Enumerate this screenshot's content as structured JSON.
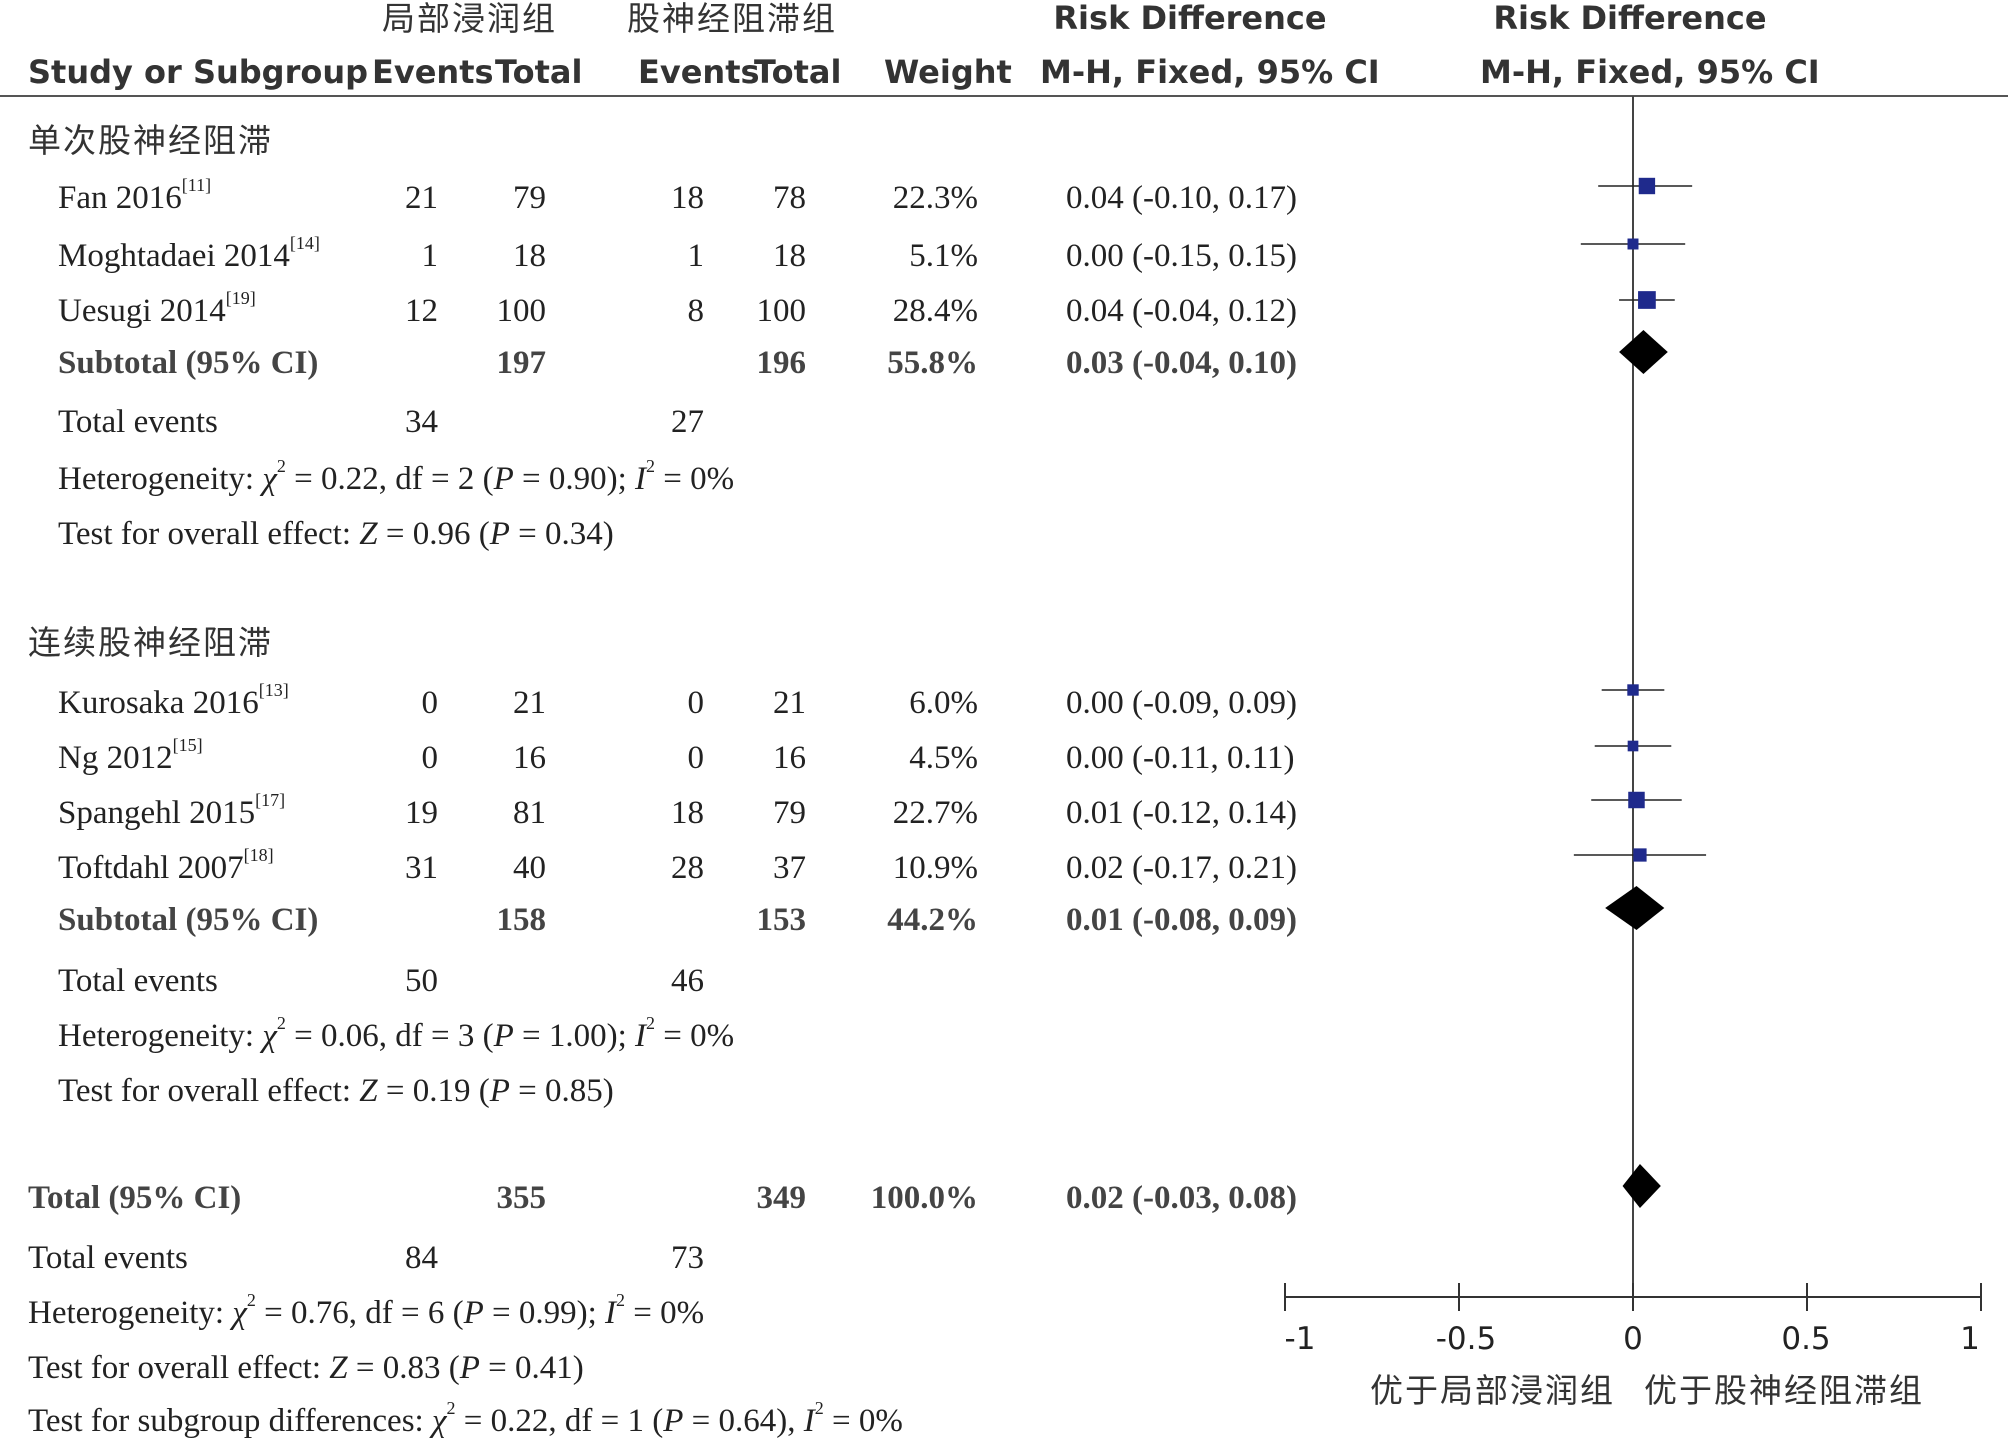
{
  "header": {
    "group1": "局部浸润组",
    "group2": "股神经阻滞组",
    "rd_title1": "Risk Difference",
    "rd_title2": "Risk Difference",
    "study_col": "Study or Subgroup",
    "events1": "Events",
    "total1": "Total",
    "events2": "Events",
    "total2": "Total",
    "weight": "Weight",
    "method1": "M-H, Fixed, 95% CI",
    "method2": "M-H, Fixed, 95% CI"
  },
  "subgroups": [
    {
      "title": "单次股神经阻滞",
      "studies": [
        {
          "name": "Fan 2016",
          "ref": "[11]",
          "e1": "21",
          "t1": "79",
          "e2": "18",
          "t2": "78",
          "weight": "22.3%",
          "ci": "0.04 (-0.10, 0.17)"
        },
        {
          "name": "Moghtadaei 2014",
          "ref": "[14]",
          "e1": "1",
          "t1": "18",
          "e2": "1",
          "t2": "18",
          "weight": "5.1%",
          "ci": "0.00 (-0.15, 0.15)"
        },
        {
          "name": "Uesugi 2014",
          "ref": "[19]",
          "e1": "12",
          "t1": "100",
          "e2": "8",
          "t2": "100",
          "weight": "28.4%",
          "ci": "0.04 (-0.04, 0.12)"
        }
      ],
      "subtotal": {
        "label": "Subtotal (95% CI)",
        "t1": "197",
        "t2": "196",
        "weight": "55.8%",
        "ci": "0.03 (-0.04, 0.10)"
      },
      "total_events": {
        "label": "Total events",
        "e1": "34",
        "e2": "27"
      },
      "heterogeneity": {
        "prefix": "Heterogeneity: ",
        "chi_sym": "χ",
        "chi_val": " = 0.22, df = 2 (",
        "p_sym": "P",
        "p_val": " = 0.90); ",
        "i_sym": "I",
        "i_val": " = 0%"
      },
      "overall": {
        "prefix": "Test for overall effect: ",
        "z_sym": "Z",
        "z_val": " = 0.96 (",
        "p_sym": "P",
        "p_val": " = 0.34)"
      }
    },
    {
      "title": "连续股神经阻滞",
      "studies": [
        {
          "name": "Kurosaka 2016",
          "ref": "[13]",
          "e1": "0",
          "t1": "21",
          "e2": "0",
          "t2": "21",
          "weight": "6.0%",
          "ci": "0.00 (-0.09, 0.09)"
        },
        {
          "name": "Ng 2012",
          "ref": "[15]",
          "e1": "0",
          "t1": "16",
          "e2": "0",
          "t2": "16",
          "weight": "4.5%",
          "ci": "0.00 (-0.11, 0.11)"
        },
        {
          "name": "Spangehl 2015",
          "ref": "[17]",
          "e1": "19",
          "t1": "81",
          "e2": "18",
          "t2": "79",
          "weight": "22.7%",
          "ci": "0.01 (-0.12, 0.14)"
        },
        {
          "name": "Toftdahl 2007",
          "ref": "[18]",
          "e1": "31",
          "t1": "40",
          "e2": "28",
          "t2": "37",
          "weight": "10.9%",
          "ci": "0.02 (-0.17, 0.21)"
        }
      ],
      "subtotal": {
        "label": "Subtotal (95% CI)",
        "t1": "158",
        "t2": "153",
        "weight": "44.2%",
        "ci": "0.01 (-0.08, 0.09)"
      },
      "total_events": {
        "label": "Total events",
        "e1": "50",
        "e2": "46"
      },
      "heterogeneity": {
        "prefix": "Heterogeneity: ",
        "chi_sym": "χ",
        "chi_val": " = 0.06, df = 3 (",
        "p_sym": "P",
        "p_val": " = 1.00); ",
        "i_sym": "I",
        "i_val": " = 0%"
      },
      "overall": {
        "prefix": "Test for overall effect: ",
        "z_sym": "Z",
        "z_val": " = 0.19 (",
        "p_sym": "P",
        "p_val": " = 0.85)"
      }
    }
  ],
  "total": {
    "label": "Total (95% CI)",
    "t1": "355",
    "t2": "349",
    "weight": "100.0%",
    "ci": "0.02 (-0.03, 0.08)"
  },
  "total_events": {
    "label": "Total events",
    "e1": "84",
    "e2": "73"
  },
  "total_heterogeneity": {
    "prefix": "Heterogeneity: ",
    "chi_sym": "χ",
    "chi_val": " = 0.76, df = 6 (",
    "p_sym": "P",
    "p_val": " = 0.99); ",
    "i_sym": "I",
    "i_val": " = 0%"
  },
  "total_overall": {
    "prefix": "Test for overall effect: ",
    "z_sym": "Z",
    "z_val": " = 0.83 (",
    "p_sym": "P",
    "p_val": " = 0.41)"
  },
  "subgroup_diff": {
    "prefix": "Test for subgroup differences: ",
    "chi_sym": "χ",
    "chi_val": " = 0.22, df = 1 (",
    "p_sym": "P",
    "p_val": " = 0.64), ",
    "i_sym": "I",
    "i_val": " = 0%"
  },
  "axis": {
    "ticks": [
      "-1",
      "-0.5",
      "0",
      "0.5",
      "1"
    ],
    "favours_left": "优于局部浸润组",
    "favours_right": "优于股神经阻滞组"
  },
  "colors": {
    "marker": "#1f2a8c",
    "diamond": "#000000",
    "text": "#333333"
  },
  "chart_data": {
    "type": "forest",
    "measure": "Risk Difference",
    "xlim": [
      -1,
      1
    ],
    "xticks": [
      -1,
      -0.5,
      0,
      0.5,
      1
    ],
    "null_line": 0,
    "studies": [
      {
        "name": "Fan 2016",
        "rd": 0.04,
        "lo": -0.1,
        "hi": 0.17,
        "weight": 22.3,
        "subgroup": 0
      },
      {
        "name": "Moghtadaei 2014",
        "rd": 0.0,
        "lo": -0.15,
        "hi": 0.15,
        "weight": 5.1,
        "subgroup": 0
      },
      {
        "name": "Uesugi 2014",
        "rd": 0.04,
        "lo": -0.04,
        "hi": 0.12,
        "weight": 28.4,
        "subgroup": 0
      },
      {
        "name": "Kurosaka 2016",
        "rd": 0.0,
        "lo": -0.09,
        "hi": 0.09,
        "weight": 6.0,
        "subgroup": 1
      },
      {
        "name": "Ng 2012",
        "rd": 0.0,
        "lo": -0.11,
        "hi": 0.11,
        "weight": 4.5,
        "subgroup": 1
      },
      {
        "name": "Spangehl 2015",
        "rd": 0.01,
        "lo": -0.12,
        "hi": 0.14,
        "weight": 22.7,
        "subgroup": 1
      },
      {
        "name": "Toftdahl 2007",
        "rd": 0.02,
        "lo": -0.17,
        "hi": 0.21,
        "weight": 10.9,
        "subgroup": 1
      }
    ],
    "diamonds": [
      {
        "name": "Subtotal 1",
        "rd": 0.03,
        "lo": -0.04,
        "hi": 0.1
      },
      {
        "name": "Subtotal 2",
        "rd": 0.01,
        "lo": -0.08,
        "hi": 0.09
      },
      {
        "name": "Total",
        "rd": 0.02,
        "lo": -0.03,
        "hi": 0.08
      }
    ]
  }
}
